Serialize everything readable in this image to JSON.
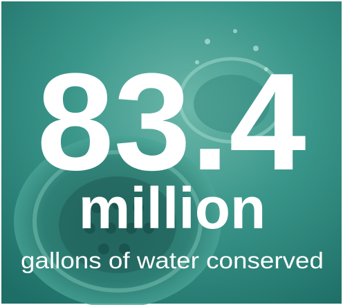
{
  "stat": {
    "value": 83.4,
    "unit": "million",
    "caption": "gallons of water conserved"
  }
}
